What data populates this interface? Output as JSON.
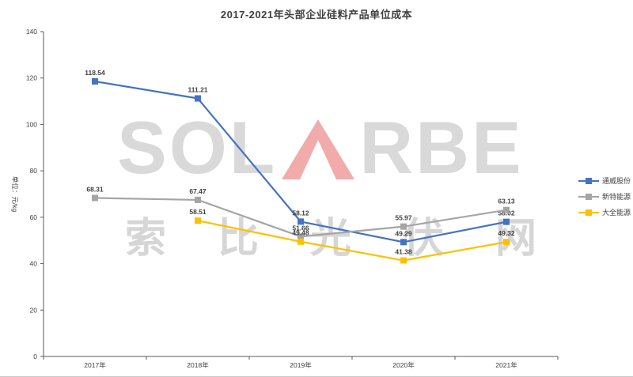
{
  "chart_data": {
    "type": "line",
    "title": "2017-2021年头部企业硅料产品单位成本",
    "categories": [
      "2017年",
      "2018年",
      "2019年",
      "2020年",
      "2021年"
    ],
    "series": [
      {
        "name": "通威股份",
        "color": "#4472c4",
        "values": [
          118.54,
          111.21,
          58.12,
          49.29,
          58.02
        ]
      },
      {
        "name": "新特能源",
        "color": "#a5a5a5",
        "values": [
          68.31,
          67.47,
          51.66,
          55.97,
          63.13
        ]
      },
      {
        "name": "大全能源",
        "color": "#ffc000",
        "values": [
          null,
          58.51,
          49.48,
          41.38,
          49.32
        ]
      }
    ],
    "ylabel": "单位：元/kg",
    "xlabel": "",
    "ylim": [
      0,
      140
    ],
    "ytick_step": 20,
    "yticks": [
      0,
      20,
      40,
      60,
      80,
      100,
      120,
      140
    ],
    "grid": false,
    "marker": "square",
    "legend_position": "right"
  },
  "watermark": {
    "full_text": "SOLARBE",
    "text_left": "SOL",
    "text_right": "RBE",
    "subtext": "索比光伏网",
    "letters_color": "#d9d9d9",
    "accent_color": "#f2abab"
  },
  "colors": {
    "axis": "#595959",
    "text": "#404040",
    "background": "#ffffff"
  }
}
